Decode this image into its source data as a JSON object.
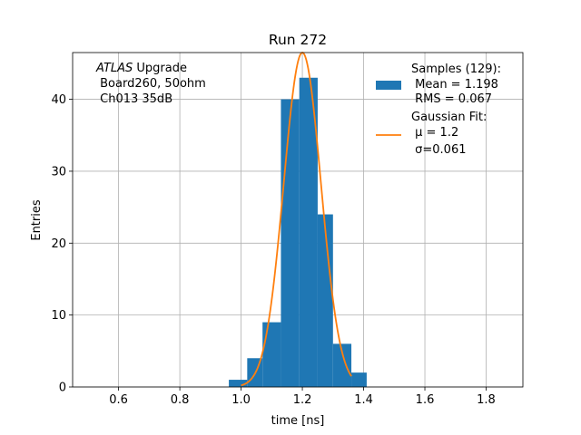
{
  "chart_data": {
    "type": "bar",
    "title": "Run 272",
    "xlabel": "time [ns]",
    "ylabel": "Entries",
    "xlim": [
      0.45,
      1.92
    ],
    "ylim": [
      0,
      46.5
    ],
    "grid": true,
    "x_ticks": [
      "0.6",
      "0.8",
      "1.0",
      "1.2",
      "1.4",
      "1.6",
      "1.8"
    ],
    "y_ticks": [
      "0",
      "10",
      "20",
      "30",
      "40"
    ],
    "histogram": {
      "color": "#1f77b4",
      "bin_edges": [
        0.96,
        1.02,
        1.07,
        1.13,
        1.19,
        1.25,
        1.3,
        1.36,
        1.41
      ],
      "counts": [
        1,
        4,
        9,
        40,
        43,
        24,
        6,
        2
      ]
    },
    "fit": {
      "color": "#ff7f0e",
      "mu": 1.2,
      "sigma": 0.061,
      "amplitude": 46.5,
      "x_range": [
        1.0,
        1.36
      ]
    },
    "annotation": {
      "italic": "ATLAS",
      "line1_rest": " Upgrade",
      "line2": " Board260, 50ohm",
      "line3": " Ch013 35dB"
    },
    "legend": {
      "placement": "top-right",
      "samples": {
        "line1": "Samples (129):",
        "line2": " Mean = 1.198",
        "line3": " RMS = 0.067"
      },
      "gauss": {
        "line1": "Gaussian Fit:",
        "line2_mu": " μ = 1.2",
        "line3_sigma": " σ=0.061"
      }
    }
  }
}
